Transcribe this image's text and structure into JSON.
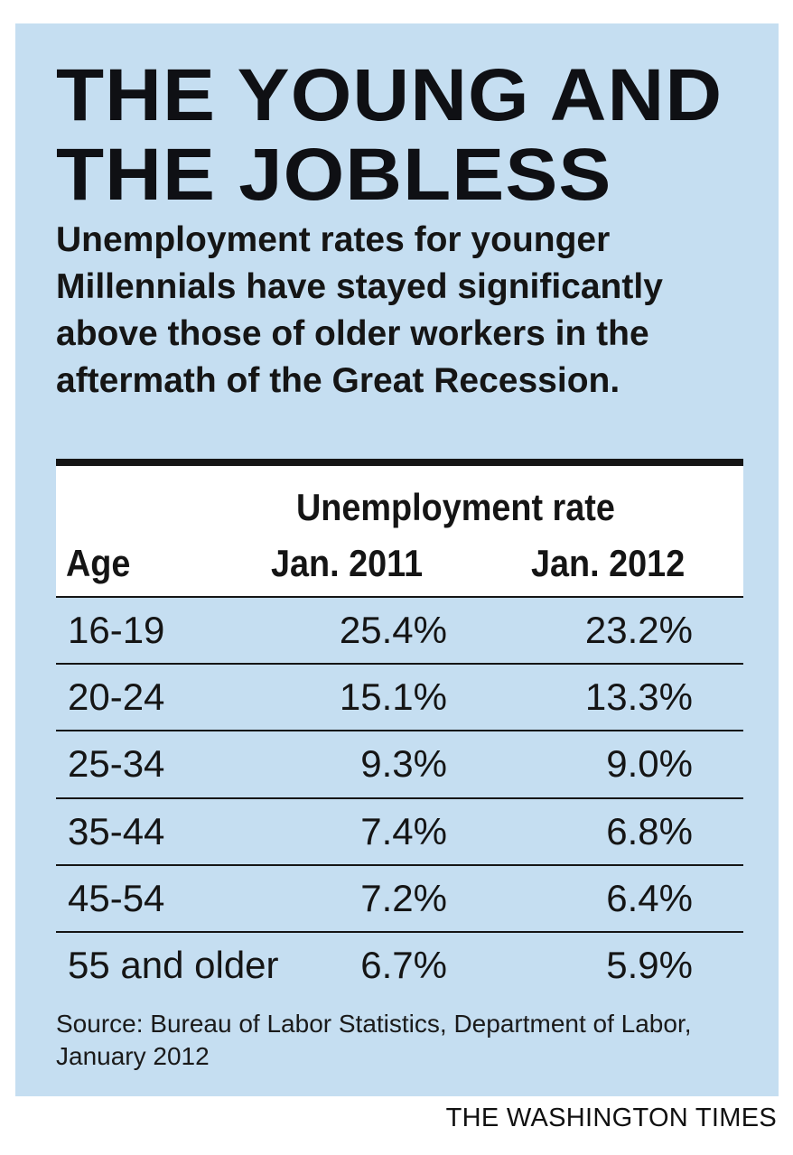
{
  "title_lines": [
    "THE YOUNG AND",
    "THE JOBLESS"
  ],
  "subtitle": "Unemployment rates for younger Millennials have stayed significantly above those of older workers in the aftermath of the Great Recession.",
  "source": "Source: Bureau of Labor Statistics, Department of Labor, January 2012",
  "credit": "THE WASHINGTON TIMES",
  "colors": {
    "panel": "#c5def1",
    "header_bg": "#ffffff",
    "text": "#151515"
  },
  "chart_data": {
    "type": "table",
    "title": "THE YOUNG AND THE JOBLESS",
    "group_header": "Unemployment rate",
    "columns": [
      "Age",
      "Jan. 2011",
      "Jan. 2012"
    ],
    "rows": [
      [
        "16-19",
        "25.4%",
        "23.2%"
      ],
      [
        "20-24",
        "15.1%",
        "13.3%"
      ],
      [
        "25-34",
        "9.3%",
        "9.0%"
      ],
      [
        "35-44",
        "7.4%",
        "6.8%"
      ],
      [
        "45-54",
        "7.2%",
        "6.4%"
      ],
      [
        "55 and older",
        "6.7%",
        "5.9%"
      ]
    ]
  }
}
